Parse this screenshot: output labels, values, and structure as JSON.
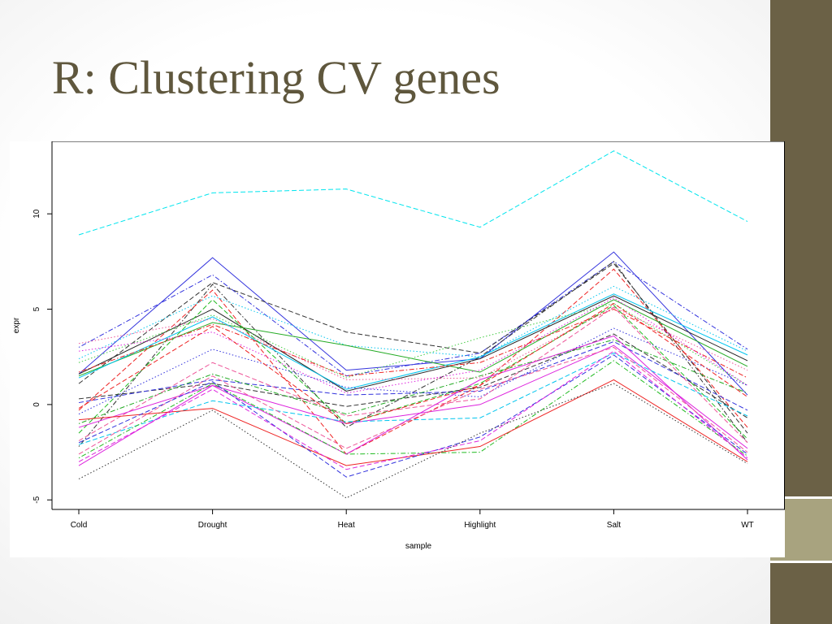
{
  "slide": {
    "title": "R: Clustering CV genes"
  },
  "colors": {
    "sidebar": "#6b6146",
    "sidebar_accent": "#a8a37f",
    "title": "#5f573d"
  },
  "chart_data": {
    "type": "line",
    "title": "",
    "xlabel": "sample",
    "ylabel": "expr",
    "categories": [
      "Cold",
      "Drought",
      "Heat",
      "Highlight",
      "Salt",
      "WT"
    ],
    "ylim": [
      -5.5,
      13.8
    ],
    "yticks": [
      -5,
      0,
      5,
      10
    ],
    "grid": false,
    "legend": "none",
    "series": [
      {
        "color": "#00e5ee",
        "dash": "dashed",
        "values": [
          8.9,
          11.1,
          11.3,
          9.3,
          13.3,
          9.6
        ]
      },
      {
        "color": "#3333dd",
        "dash": "solid",
        "values": [
          1.6,
          7.7,
          1.8,
          2.4,
          8.0,
          0.5
        ]
      },
      {
        "color": "#3333dd",
        "dash": "dotdash",
        "values": [
          3.0,
          6.8,
          1.5,
          2.7,
          7.5,
          2.9
        ]
      },
      {
        "color": "#333333",
        "dash": "dashed",
        "values": [
          1.1,
          6.4,
          3.8,
          2.7,
          7.4,
          -1.5
        ]
      },
      {
        "color": "#333333",
        "dash": "dotdash",
        "values": [
          -2.2,
          6.3,
          -1.2,
          2.5,
          7.5,
          -2.0
        ]
      },
      {
        "color": "#ee2222",
        "dash": "dashed",
        "values": [
          -0.3,
          6.0,
          -2.6,
          1.0,
          7.1,
          -1.2
        ]
      },
      {
        "color": "#00c5ee",
        "dash": "dotted",
        "values": [
          2.4,
          5.7,
          3.1,
          2.5,
          6.2,
          2.8
        ]
      },
      {
        "color": "#22aa22",
        "dash": "solid",
        "values": [
          1.5,
          4.3,
          3.1,
          1.7,
          5.5,
          2.0
        ]
      },
      {
        "color": "#222222",
        "dash": "solid",
        "values": [
          1.6,
          5.0,
          0.7,
          2.4,
          5.7,
          2.3
        ]
      },
      {
        "color": "#00c5ee",
        "dash": "solid",
        "values": [
          1.4,
          4.6,
          0.8,
          2.5,
          5.8,
          2.6
        ]
      },
      {
        "color": "#44cc44",
        "dash": "dotted",
        "values": [
          2.2,
          4.7,
          1.4,
          3.5,
          5.3,
          1.0
        ]
      },
      {
        "color": "#ee5599",
        "dash": "dotted",
        "values": [
          3.2,
          4.5,
          1.3,
          1.4,
          5.1,
          1.8
        ]
      },
      {
        "color": "#ee2222",
        "dash": "dotdash",
        "values": [
          1.7,
          4.2,
          1.5,
          2.2,
          5.0,
          1.4
        ]
      },
      {
        "color": "#22bb22",
        "dash": "dashed",
        "values": [
          -1.5,
          5.5,
          -1.0,
          1.1,
          5.2,
          -1.8
        ]
      },
      {
        "color": "#dd22dd",
        "dash": "dotted",
        "values": [
          2.8,
          3.8,
          0.6,
          1.8,
          5.6,
          1.0
        ]
      },
      {
        "color": "#333333",
        "dash": "dashed",
        "values": [
          0.3,
          1.1,
          -0.1,
          0.9,
          3.7,
          -0.7
        ]
      },
      {
        "color": "#3333dd",
        "dash": "dashed",
        "values": [
          0.1,
          1.3,
          0.5,
          0.7,
          3.3,
          -0.3
        ]
      },
      {
        "color": "#3333dd",
        "dash": "dotted",
        "values": [
          -0.5,
          2.9,
          0.9,
          0.4,
          4.0,
          1.0
        ]
      },
      {
        "color": "#22aa22",
        "dash": "dotdash",
        "values": [
          -1.0,
          1.6,
          -0.5,
          1.5,
          3.4,
          0.6
        ]
      },
      {
        "color": "#ee5599",
        "dash": "dashed",
        "values": [
          -1.9,
          2.2,
          -0.6,
          0.3,
          5.1,
          -2.0
        ]
      },
      {
        "color": "#dd22dd",
        "dash": "solid",
        "values": [
          -1.2,
          1.0,
          -1.0,
          0.0,
          3.1,
          -2.3
        ]
      },
      {
        "color": "#dd22dd",
        "dash": "solid",
        "values": [
          -3.2,
          1.0,
          -2.6,
          1.3,
          3.6,
          -2.9
        ]
      },
      {
        "color": "#00c5ee",
        "dash": "dashed",
        "values": [
          -2.1,
          0.2,
          -0.9,
          -0.7,
          2.7,
          -0.6
        ]
      },
      {
        "color": "#22bb22",
        "dash": "dotdash",
        "values": [
          -2.8,
          1.1,
          -2.6,
          -2.5,
          2.3,
          -2.7
        ]
      },
      {
        "color": "#ee5599",
        "dash": "dashed",
        "values": [
          -2.6,
          1.5,
          -2.3,
          0.8,
          3.0,
          -2.5
        ]
      },
      {
        "color": "#ee2222",
        "dash": "solid",
        "values": [
          -0.8,
          -0.2,
          -3.2,
          -2.2,
          1.3,
          -3.0
        ]
      },
      {
        "color": "#3333dd",
        "dash": "dashed",
        "values": [
          -2.0,
          1.2,
          -3.8,
          -1.7,
          2.6,
          -2.6
        ]
      },
      {
        "color": "#dd22dd",
        "dash": "dashed",
        "values": [
          -3.0,
          0.8,
          -3.4,
          -1.9,
          2.8,
          -2.8
        ]
      },
      {
        "color": "#333333",
        "dash": "dotted",
        "values": [
          -3.9,
          -0.3,
          -4.9,
          -1.5,
          1.1,
          -3.1
        ]
      },
      {
        "color": "#ee2222",
        "dash": "dashed",
        "values": [
          -0.2,
          4.1,
          -1.0,
          1.0,
          5.3,
          0.4
        ]
      }
    ]
  }
}
